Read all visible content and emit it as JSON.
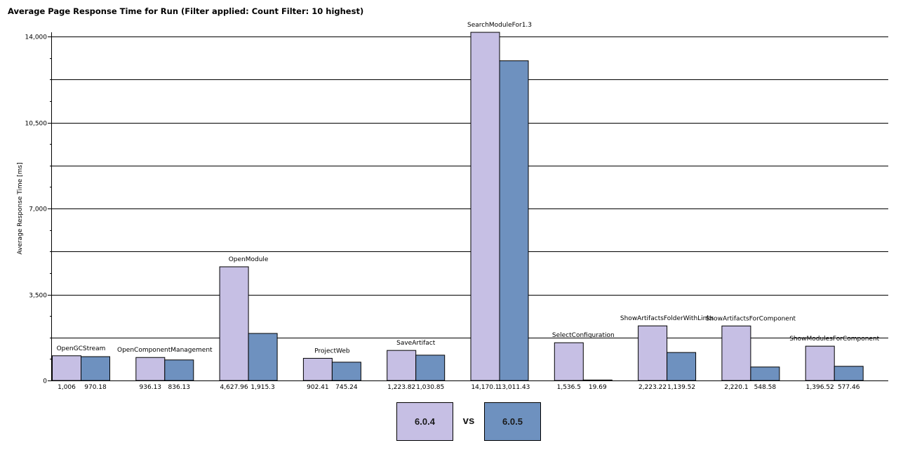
{
  "chart_data": {
    "type": "bar",
    "title": "Average Page Response Time for Run (Filter applied: Count Filter: 10 highest)",
    "ylabel": "Average Response Time [ms]",
    "xlabel": "",
    "ylim": [
      0,
      14000
    ],
    "yticks": [
      0,
      3500,
      7000,
      10500,
      14000
    ],
    "ytick_labels": [
      "0",
      "3,500",
      "7,000",
      "10,500",
      "14,000"
    ],
    "grid": true,
    "legend_position": "bottom-center",
    "categories": [
      "OpenGCStream",
      "OpenComponentManagement",
      "OpenModule",
      "ProjectWeb",
      "SaveArtifact",
      "SearchModuleFor1.3",
      "SelectConfiguration",
      "ShowArtifactsFolderWithLinks",
      "ShowArtifactsForComponent",
      "ShowModulesForComponent"
    ],
    "series": [
      {
        "name": "6.0.4",
        "color": "#c6bfe4",
        "values": [
          1006,
          936.13,
          4627.96,
          902.41,
          1223.82,
          14170.1,
          1536.5,
          2223.22,
          2220.1,
          1396.52
        ],
        "labels": [
          "1,006",
          "936.13",
          "4,627.96",
          "902.41",
          "1,223.82",
          "14,170.1",
          "1,536.5",
          "2,223.22",
          "2,220.1",
          "1,396.52"
        ]
      },
      {
        "name": "6.0.5",
        "color": "#6e91bf",
        "values": [
          970.18,
          836.13,
          1915.3,
          745.24,
          1030.85,
          13011.43,
          19.69,
          1139.52,
          548.58,
          577.46
        ],
        "labels": [
          "970.18",
          "836.13",
          "1,915.3",
          "745.24",
          "1,030.85",
          "13,011.43",
          "19.69",
          "1,139.52",
          "548.58",
          "577.46"
        ]
      }
    ],
    "legend_separator": "vs"
  }
}
